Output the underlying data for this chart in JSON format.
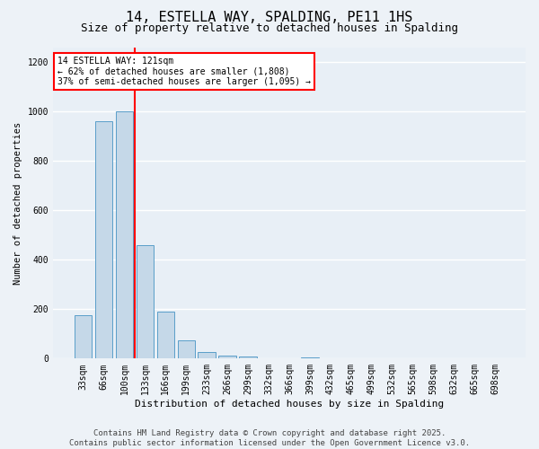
{
  "title": "14, ESTELLA WAY, SPALDING, PE11 1HS",
  "subtitle": "Size of property relative to detached houses in Spalding",
  "xlabel": "Distribution of detached houses by size in Spalding",
  "ylabel": "Number of detached properties",
  "categories": [
    "33sqm",
    "66sqm",
    "100sqm",
    "133sqm",
    "166sqm",
    "199sqm",
    "233sqm",
    "266sqm",
    "299sqm",
    "332sqm",
    "366sqm",
    "399sqm",
    "432sqm",
    "465sqm",
    "499sqm",
    "532sqm",
    "565sqm",
    "598sqm",
    "632sqm",
    "665sqm",
    "698sqm"
  ],
  "values": [
    175,
    960,
    1000,
    460,
    190,
    75,
    25,
    12,
    7,
    1,
    0,
    5,
    0,
    0,
    0,
    0,
    0,
    0,
    0,
    0,
    0
  ],
  "bar_color": "#c5d8e8",
  "bar_edge_color": "#5a9ec9",
  "vline_x": 2.5,
  "vline_color": "red",
  "annotation_text": "14 ESTELLA WAY: 121sqm\n← 62% of detached houses are smaller (1,808)\n37% of semi-detached houses are larger (1,095) →",
  "annotation_box_color": "white",
  "annotation_box_edge_color": "red",
  "ylim": [
    0,
    1260
  ],
  "yticks": [
    0,
    200,
    400,
    600,
    800,
    1000,
    1200
  ],
  "footer_text": "Contains HM Land Registry data © Crown copyright and database right 2025.\nContains public sector information licensed under the Open Government Licence v3.0.",
  "bg_color": "#edf2f7",
  "plot_bg_color": "#e8eff6",
  "grid_color": "white",
  "title_fontsize": 11,
  "subtitle_fontsize": 9,
  "tick_fontsize": 7,
  "ylabel_fontsize": 7.5,
  "xlabel_fontsize": 8,
  "footer_fontsize": 6.5,
  "annot_fontsize": 7
}
